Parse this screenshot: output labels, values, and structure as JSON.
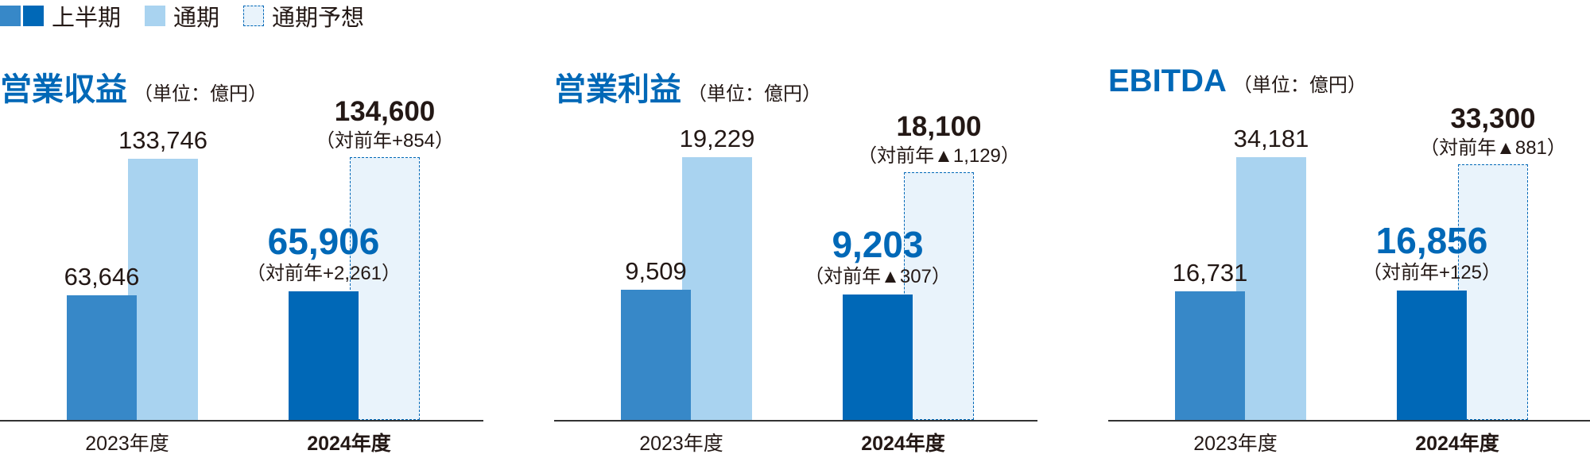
{
  "legend": [
    {
      "label": "上半期",
      "swatch": "half"
    },
    {
      "label": "通期",
      "swatch": "full"
    },
    {
      "label": "通期予想",
      "swatch": "forecast"
    }
  ],
  "colors": {
    "h1_2023": "#3788c8",
    "full_2023": "#a9d3f0",
    "h1_2024": "#0068b7",
    "forecast_fill": "#e9f3fb",
    "forecast_border": "#0068b7",
    "title": "#0068b7",
    "baseline": "#333333"
  },
  "chart_data": [
    {
      "type": "bar",
      "title": "営業収益",
      "unit": "（単位：億円）",
      "categories": [
        "2023年度",
        "2024年度"
      ],
      "series": [
        {
          "name": "上半期",
          "values": [
            63646,
            65906
          ]
        },
        {
          "name": "通期",
          "values": [
            133746,
            null
          ]
        },
        {
          "name": "通期予想",
          "values": [
            null,
            134600
          ]
        }
      ],
      "labels": {
        "h1_2023": "63,646",
        "full_2023": "133,746",
        "h1_2024": "65,906",
        "h1_2024_diff": "（対前年+2,261）",
        "forecast_2024": "134,600",
        "forecast_2024_diff": "（対前年+854）"
      },
      "ylim": [
        0,
        134600
      ]
    },
    {
      "type": "bar",
      "title": "営業利益",
      "unit": "（単位：億円）",
      "categories": [
        "2023年度",
        "2024年度"
      ],
      "series": [
        {
          "name": "上半期",
          "values": [
            9509,
            9203
          ]
        },
        {
          "name": "通期",
          "values": [
            19229,
            null
          ]
        },
        {
          "name": "通期予想",
          "values": [
            null,
            18100
          ]
        }
      ],
      "labels": {
        "h1_2023": "9,509",
        "full_2023": "19,229",
        "h1_2024": "9,203",
        "h1_2024_diff": "（対前年▲307）",
        "forecast_2024": "18,100",
        "forecast_2024_diff": "（対前年▲1,129）"
      },
      "ylim": [
        0,
        19229
      ]
    },
    {
      "type": "bar",
      "title": "EBITDA",
      "unit": "（単位：億円）",
      "categories": [
        "2023年度",
        "2024年度"
      ],
      "series": [
        {
          "name": "上半期",
          "values": [
            16731,
            16856
          ]
        },
        {
          "name": "通期",
          "values": [
            34181,
            null
          ]
        },
        {
          "name": "通期予想",
          "values": [
            null,
            33300
          ]
        }
      ],
      "labels": {
        "h1_2023": "16,731",
        "full_2023": "34,181",
        "h1_2024": "16,856",
        "h1_2024_diff": "（対前年+125）",
        "forecast_2024": "33,300",
        "forecast_2024_diff": "（対前年▲881）"
      },
      "ylim": [
        0,
        34181
      ]
    }
  ]
}
